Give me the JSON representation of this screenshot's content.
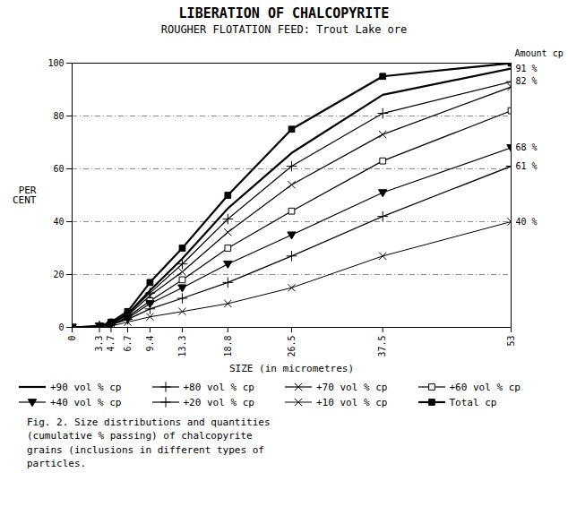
{
  "chart_data": {
    "type": "line",
    "title": "LIBERATION OF CHALCOPYRITE",
    "subtitle": "ROUGHER FLOTATION FEED:  Trout Lake ore",
    "xlabel": "SIZE (in micrometres)",
    "ylabel": "PER\nCENT",
    "x": [
      0,
      3.3,
      4.7,
      6.7,
      9.4,
      13.3,
      18.8,
      26.5,
      37.5,
      53
    ],
    "xlim": [
      0,
      53
    ],
    "ylim": [
      0,
      100
    ],
    "xticks": [
      0,
      3.3,
      4.7,
      6.7,
      9.4,
      13.3,
      18.8,
      26.5,
      37.5,
      53
    ],
    "yticks": [
      0,
      20,
      40,
      60,
      80,
      100
    ],
    "grid": "y",
    "legend": "bottom",
    "annotation": "Amount cp",
    "end_labels": [
      {
        "x": 53,
        "y": 98,
        "text": "91 %"
      },
      {
        "x": 53,
        "y": 93,
        "text": "82 %"
      },
      {
        "x": 53,
        "y": 68,
        "text": "68 %"
      },
      {
        "x": 53,
        "y": 61,
        "text": "61 %"
      },
      {
        "x": 53,
        "y": 40,
        "text": "40 %"
      }
    ],
    "caption": "Fig. 2. Size distributions and quantities\n(cumulative % passing) of chalcopyrite\ngrains (inclusions in different types of\nparticles.",
    "series": [
      {
        "name": "+90 vol % cp",
        "color": "#000000",
        "marker": "none",
        "line_style": "thick",
        "values": [
          0,
          0.5,
          1.5,
          5,
          14,
          26,
          45,
          66,
          88,
          98
        ]
      },
      {
        "name": "+80 vol % cp",
        "color": "#000000",
        "marker": "plus",
        "line_style": "solid",
        "values": [
          0,
          0.5,
          1.5,
          5,
          13,
          24,
          41,
          61,
          81,
          93
        ]
      },
      {
        "name": "+70 vol % cp",
        "color": "#000000",
        "marker": "cross",
        "line_style": "solid",
        "values": [
          0,
          0.5,
          1.5,
          4.5,
          12,
          21,
          36,
          54,
          73,
          91
        ]
      },
      {
        "name": "+60 vol % cp",
        "color": "#000000",
        "marker": "open-square",
        "line_style": "solid",
        "values": [
          0,
          0.5,
          1,
          4,
          10,
          18,
          30,
          44,
          63,
          82
        ]
      },
      {
        "name": "+40 vol % cp",
        "color": "#000000",
        "marker": "triangle-down",
        "line_style": "solid",
        "values": [
          0,
          0.5,
          1,
          3.5,
          9,
          15,
          24,
          35,
          51,
          68
        ]
      },
      {
        "name": "+20 vol % cp",
        "color": "#000000",
        "marker": "plus",
        "line_style": "solid",
        "values": [
          0,
          0.5,
          1,
          3,
          7,
          11,
          17,
          27,
          42,
          61
        ]
      },
      {
        "name": "+10 vol % cp",
        "color": "#000000",
        "marker": "cross",
        "line_style": "thin",
        "values": [
          0,
          0,
          0.5,
          2,
          4,
          6,
          9,
          15,
          27,
          40
        ]
      },
      {
        "name": "Total cp",
        "color": "#000000",
        "marker": "square",
        "line_style": "thick",
        "values": [
          0,
          0.5,
          2,
          6,
          17,
          30,
          50,
          75,
          95,
          100
        ]
      }
    ]
  }
}
